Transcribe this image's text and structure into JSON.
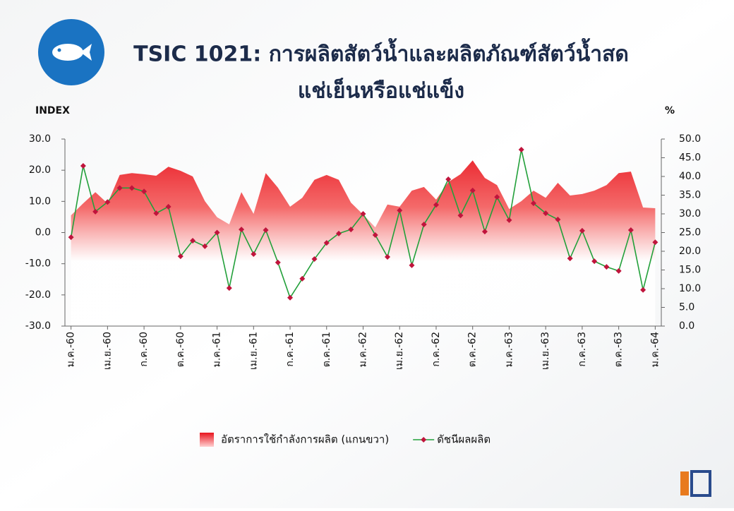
{
  "chart_data": {
    "type": "line",
    "title": [
      "TSIC 1021: การผลิตสัตว์น้ำและผลิตภัณฑ์สัตว์น้ำสด",
      "แช่เย็นหรือแช่แข็ง"
    ],
    "y_label": "INDEX",
    "y2_label": "%",
    "categories": [
      "ม.ค.-60",
      null,
      null,
      "เม.ย.-60",
      null,
      null,
      "ก.ค.-60",
      null,
      null,
      "ต.ค.-60",
      null,
      null,
      "ม.ค.-61",
      null,
      null,
      "เม.ย.-61",
      null,
      null,
      "ก.ค.-61",
      null,
      null,
      "ต.ค.-61",
      null,
      null,
      "ม.ค.-62",
      null,
      null,
      "เม.ย.-62",
      null,
      null,
      "ก.ค.-62",
      null,
      null,
      "ต.ค.-62",
      null,
      null,
      "ม.ค.-63",
      null,
      null,
      "เม.ย.-63",
      null,
      null,
      "ก.ค.-63",
      null,
      null,
      "ต.ค.-63",
      null,
      null,
      "ม.ค.-64"
    ],
    "series": [
      {
        "name": "อัตราการใช้กำลังการผลิต (แกนขวา)",
        "color": "#e8141e",
        "axis": "y2",
        "kind": "area",
        "values": [
          29.6,
          32.8,
          35.8,
          32.8,
          40.4,
          40.9,
          40.6,
          40.2,
          42.6,
          41.5,
          40.0,
          33.4,
          29.1,
          27.2,
          35.8,
          30.0,
          40.9,
          37.0,
          31.9,
          34.3,
          39.1,
          40.4,
          39.1,
          33.0,
          29.8,
          26.4,
          32.5,
          31.9,
          36.2,
          37.2,
          33.8,
          38.5,
          40.6,
          44.3,
          39.6,
          37.7,
          31.3,
          33.4,
          36.2,
          34.3,
          38.3,
          34.9,
          35.3,
          36.2,
          37.7,
          40.9,
          41.3,
          31.7,
          31.5
        ]
      },
      {
        "name": "ดัชนีผลผลิต",
        "color": "#22a03a",
        "marker_color": "#c0143c",
        "kind": "line",
        "values": [
          -1.5,
          21.4,
          6.7,
          9.8,
          14.3,
          14.3,
          13.2,
          6.2,
          8.3,
          -7.6,
          -2.6,
          -4.4,
          0.0,
          -17.8,
          1.0,
          -6.9,
          0.8,
          -9.6,
          -20.9,
          -14.8,
          -8.5,
          -3.3,
          -0.3,
          1.0,
          6.0,
          -0.8,
          -7.8,
          7.1,
          -10.5,
          2.6,
          8.9,
          17.1,
          5.5,
          13.5,
          0.3,
          11.4,
          4.0,
          26.6,
          9.4,
          6.2,
          4.2,
          -8.3,
          0.6,
          -9.2,
          -11.0,
          -12.3,
          0.8,
          -18.4,
          -3.1
        ]
      }
    ],
    "ylim": [
      -30,
      30
    ],
    "yticks": [
      {
        "value": -30,
        "label": "-30.0"
      },
      {
        "value": -20,
        "label": "-20.0"
      },
      {
        "value": -10,
        "label": "-10.0"
      },
      {
        "value": 0,
        "label": "0.0"
      },
      {
        "value": 10,
        "label": "10.0"
      },
      {
        "value": 20,
        "label": "20.0"
      },
      {
        "value": 30,
        "label": "30.0"
      }
    ],
    "y2lim": [
      0,
      50
    ],
    "y2ticks": [
      {
        "value": 0,
        "label": "0.0"
      },
      {
        "value": 5,
        "label": "5.0"
      },
      {
        "value": 10,
        "label": "10.0"
      },
      {
        "value": 15,
        "label": "15.0"
      },
      {
        "value": 20,
        "label": "20.0"
      },
      {
        "value": 25,
        "label": "25.0"
      },
      {
        "value": 30,
        "label": "30.0"
      },
      {
        "value": 35,
        "label": "35.0"
      },
      {
        "value": 40,
        "label": "40.0"
      },
      {
        "value": 45,
        "label": "45.0"
      },
      {
        "value": 50,
        "label": "50.0"
      }
    ],
    "legend": "bottom"
  }
}
